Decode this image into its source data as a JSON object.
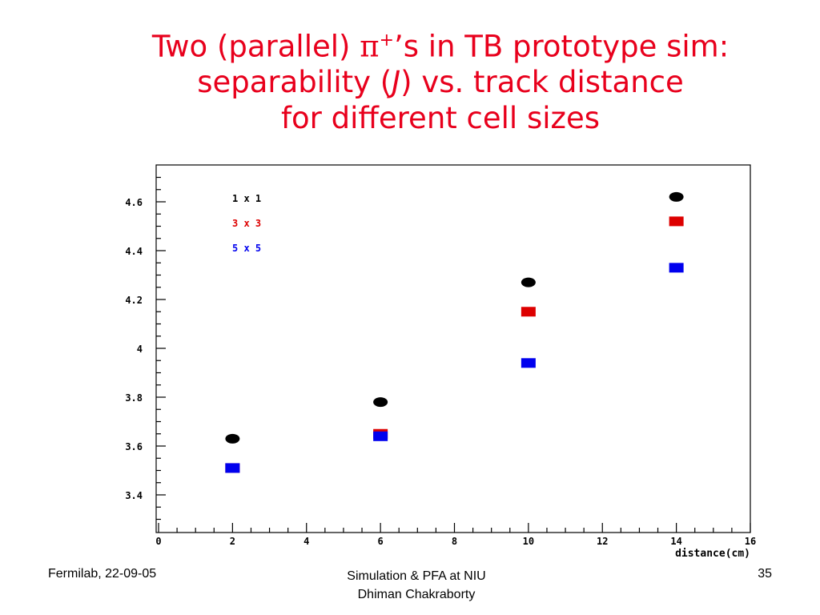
{
  "slide": {
    "title_line1_pre": "Two (parallel) ",
    "title_pi": "π",
    "title_sup": "+",
    "title_line1_post": "’s in TB prototype sim:",
    "title_line2_pre": "separability (",
    "title_J": "J",
    "title_line2_post": ") vs. track distance",
    "title_line3": "for different cell sizes",
    "footer_left": "Fermilab, 22-09-05",
    "footer_center_line1": "Simulation & PFA at NIU",
    "footer_center_line2": "Dhiman Chakraborty",
    "footer_right": "35"
  },
  "chart_data": {
    "type": "scatter",
    "xlabel": "distance(cm)",
    "ylabel": "",
    "xlim": [
      0,
      16
    ],
    "ylim": [
      3.25,
      4.75
    ],
    "x_ticks": [
      0,
      2,
      4,
      6,
      8,
      10,
      12,
      14,
      16
    ],
    "y_ticks": [
      3.4,
      3.6,
      3.8,
      4,
      4.2,
      4.4,
      4.6
    ],
    "legend_position": "top-left",
    "series": [
      {
        "name": "1 x 1",
        "color": "#000000",
        "marker": "circle",
        "points": [
          {
            "x": 2,
            "y": 3.63
          },
          {
            "x": 6,
            "y": 3.78
          },
          {
            "x": 10,
            "y": 4.27
          },
          {
            "x": 14,
            "y": 4.62
          }
        ]
      },
      {
        "name": "3 x 3",
        "color": "#dd0000",
        "marker": "square",
        "points": [
          {
            "x": 2,
            "y": 3.51
          },
          {
            "x": 6,
            "y": 3.65
          },
          {
            "x": 10,
            "y": 4.15
          },
          {
            "x": 14,
            "y": 4.52
          }
        ]
      },
      {
        "name": "5 x 5",
        "color": "#0000ee",
        "marker": "square",
        "points": [
          {
            "x": 2,
            "y": 3.51
          },
          {
            "x": 6,
            "y": 3.64
          },
          {
            "x": 10,
            "y": 3.94
          },
          {
            "x": 14,
            "y": 4.33
          }
        ]
      }
    ]
  }
}
